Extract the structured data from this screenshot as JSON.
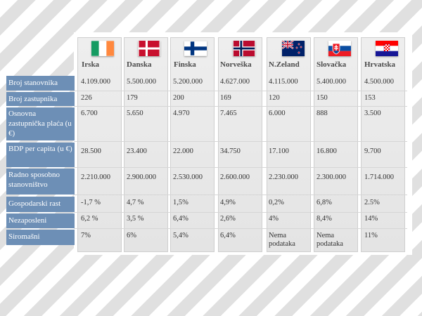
{
  "countries": [
    {
      "name": "Irska",
      "flag": "ireland-flag"
    },
    {
      "name": "Danska",
      "flag": "denmark-flag"
    },
    {
      "name": "Finska",
      "flag": "finland-flag"
    },
    {
      "name": "Norveška",
      "flag": "norway-flag"
    },
    {
      "name": "N.Zeland",
      "flag": "new-zealand-flag"
    },
    {
      "name": "Slovačka",
      "flag": "slovakia-flag"
    },
    {
      "name": "Hrvatska",
      "flag": "croatia-flag"
    }
  ],
  "rows": [
    {
      "label": "Broj stanovnika",
      "values": [
        "4.109.000",
        "5.500.000",
        "5.200.000",
        "4.627.000",
        "4.115.000",
        "5.400.000",
        "4.500.000"
      ]
    },
    {
      "label": "Broj zastupnika",
      "values": [
        "226",
        "179",
        "200",
        "169",
        "120",
        "150",
        "153"
      ]
    },
    {
      "label": "Osnovna zastupnička plaća (u €)",
      "values": [
        "6.700",
        "5.650",
        "4.970",
        "7.465",
        "6.000",
        "888",
        "3.500"
      ]
    },
    {
      "label": "BDP per capita (u €)",
      "values": [
        "28.500",
        "23.400",
        "22.000",
        "34.750",
        "17.100",
        "16.800",
        "9.700"
      ]
    },
    {
      "label": "Radno sposobno stanovništvo",
      "values": [
        "2.210.000",
        "2.900.000",
        "2.530.000",
        "2.600.000",
        "2.230.000",
        "2.300.000",
        "1.714.000"
      ]
    },
    {
      "label": "Gospodarski rast",
      "values": [
        "-1,7 %",
        "4,7 %",
        "1,5%",
        "4,9%",
        "0,2%",
        "6,8%",
        "2.5%"
      ]
    },
    {
      "label": "Nezaposleni",
      "values": [
        "6,2 %",
        "3,5 %",
        "6,4%",
        "2,6%",
        "4%",
        "8,4%",
        "14%"
      ]
    },
    {
      "label": "Siromašni",
      "values": [
        "7%",
        "6%",
        "5,4%",
        "6,4%",
        "Nema podataka",
        "Nema podataka",
        "11%"
      ]
    }
  ]
}
